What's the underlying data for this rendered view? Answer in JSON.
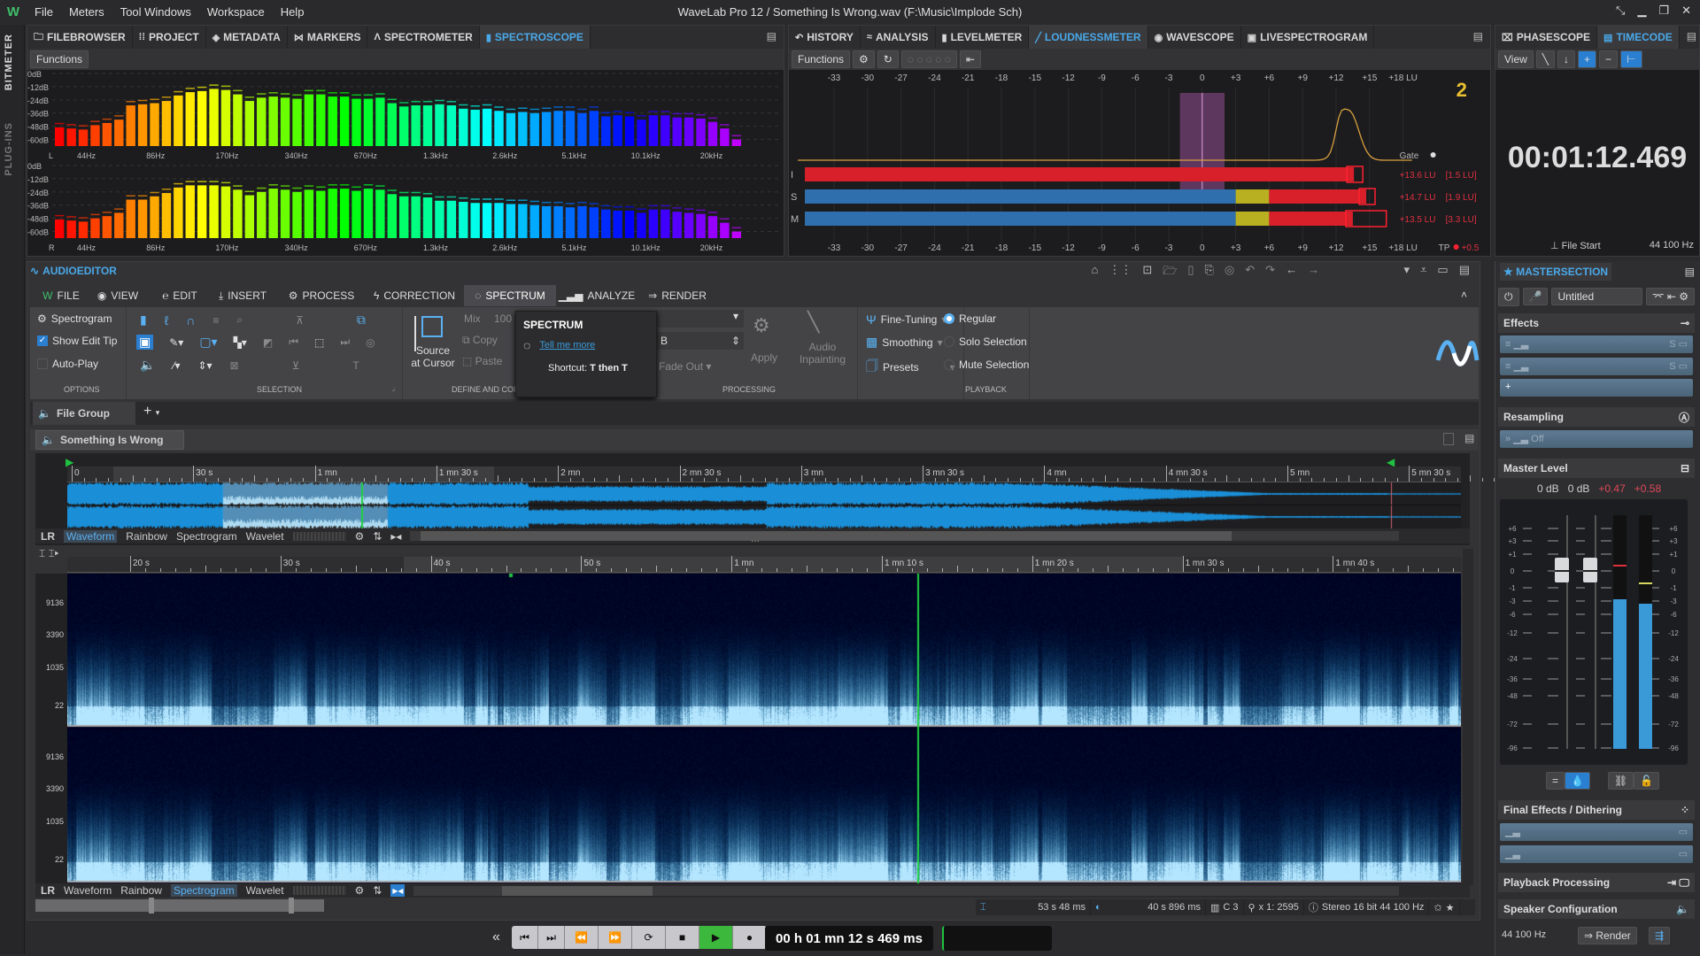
{
  "app": {
    "title": "WaveLab Pro 12 / Something Is Wrong.wav (F:\\Music\\Implode Sch)",
    "logo_icon": "wavelab-logo-icon"
  },
  "menu": [
    "File",
    "Meters",
    "Tool Windows",
    "Workspace",
    "Help"
  ],
  "side_strip": [
    "BITMETER",
    "PLUG-INS"
  ],
  "top_left": {
    "tabs": [
      {
        "label": "FILEBROWSER",
        "icon": "folder-icon"
      },
      {
        "label": "PROJECT",
        "icon": "grid-icon"
      },
      {
        "label": "METADATA",
        "icon": "tag-icon"
      },
      {
        "label": "MARKERS",
        "icon": "marker-icon"
      },
      {
        "label": "SPECTROMETER",
        "icon": "spectrometer-icon"
      },
      {
        "label": "SPECTROSCOPE",
        "icon": "bars-icon",
        "active": true
      }
    ],
    "functions": "Functions"
  },
  "spectroscope": {
    "db_ticks": [
      "0dB",
      "-12dB",
      "-24dB",
      "-36dB",
      "-48dB",
      "-60dB"
    ],
    "freq_ticks": [
      "44Hz",
      "86Hz",
      "170Hz",
      "340Hz",
      "670Hz",
      "1.3kHz",
      "2.6kHz",
      "5.1kHz",
      "10.1kHz",
      "20kHz"
    ],
    "channels": [
      "L",
      "R"
    ],
    "range_db": [
      -66,
      0
    ],
    "left_levels_db": [
      -49,
      -50,
      -51,
      -47,
      -45,
      -42,
      -29,
      -28,
      -27,
      -25,
      -20,
      -17,
      -16,
      -14,
      -15,
      -19,
      -25,
      -22,
      -21,
      -22,
      -23,
      -19,
      -19,
      -21,
      -21,
      -23,
      -23,
      -22,
      -27,
      -30,
      -29,
      -29,
      -28,
      -29,
      -32,
      -33,
      -32,
      -34,
      -36,
      -35,
      -36,
      -35,
      -34,
      -34,
      -36,
      -34,
      -39,
      -38,
      -39,
      -42,
      -38,
      -38,
      -40,
      -40,
      -41,
      -44,
      -50,
      -60
    ],
    "right_levels_db": [
      -49,
      -50,
      -51,
      -48,
      -46,
      -43,
      -31,
      -31,
      -28,
      -25,
      -20,
      -18,
      -18,
      -18,
      -19,
      -22,
      -27,
      -24,
      -21,
      -22,
      -24,
      -22,
      -23,
      -21,
      -21,
      -23,
      -21,
      -22,
      -26,
      -28,
      -28,
      -29,
      -32,
      -32,
      -33,
      -34,
      -34,
      -34,
      -35,
      -35,
      -36,
      -37,
      -37,
      -38,
      -37,
      -38,
      -40,
      -41,
      -41,
      -43,
      -40,
      -40,
      -42,
      -43,
      -44,
      -46,
      -52,
      -60
    ]
  },
  "top_mid": {
    "tabs": [
      {
        "label": "HISTORY",
        "icon": "undo-icon"
      },
      {
        "label": "ANALYSIS",
        "icon": "analysis-icon"
      },
      {
        "label": "LEVELMETER",
        "icon": "levelmeter-icon"
      },
      {
        "label": "LOUDNESSMETER",
        "icon": "loudness-icon",
        "active": true
      },
      {
        "label": "WAVESCOPE",
        "icon": "wavescope-icon"
      },
      {
        "label": "LIVESPECTROGRAM",
        "icon": "livespectrogram-icon"
      }
    ],
    "functions": "Functions"
  },
  "loudness": {
    "scale": [
      "-33",
      "-30",
      "-27",
      "-24",
      "-21",
      "-18",
      "-15",
      "-12",
      "-9",
      "-6",
      "-3",
      "0",
      "+3",
      "+6",
      "+9",
      "+12",
      "+15",
      "+18 LU"
    ],
    "range_lu": [
      -33,
      18
    ],
    "gate_label": "Gate",
    "tp_label": "TP",
    "tp_value": "+0.5",
    "rows": [
      {
        "label": "I",
        "value_lu": 13.6,
        "text": "+13.6 LU",
        "range": "[1.5 LU]"
      },
      {
        "label": "S",
        "value_lu": 14.7,
        "text": "+14.7 LU",
        "range": "[1.9 LU]"
      },
      {
        "label": "M",
        "value_lu": 13.5,
        "text": "+13.5 LU",
        "range": "[3.3 LU]"
      }
    ],
    "colors": {
      "integrated": "#d8202a",
      "short": "#2f6fae",
      "warn": "#b8b020",
      "over": "#d8202a",
      "histogram": "#d8a040"
    }
  },
  "top_right": {
    "tabs": [
      {
        "label": "PHASESCOPE",
        "icon": "phasescope-icon"
      },
      {
        "label": "TIMECODE",
        "icon": "timecode-icon",
        "active": true
      }
    ],
    "view": "View",
    "timecode": "00:01:12.469",
    "origin": "File Start",
    "rate": "44 100 Hz"
  },
  "editor": {
    "title": "AUDIOEDITOR",
    "ribbon_tabs": [
      {
        "label": "FILE",
        "icon": "wavelab-file-icon"
      },
      {
        "label": "VIEW",
        "icon": "eye-icon"
      },
      {
        "label": "EDIT",
        "icon": "edit-icon"
      },
      {
        "label": "INSERT",
        "icon": "insert-icon"
      },
      {
        "label": "PROCESS",
        "icon": "gears-icon"
      },
      {
        "label": "CORRECTION",
        "icon": "lightning-icon"
      },
      {
        "label": "SPECTRUM",
        "icon": "spectrum-icon",
        "active": true
      },
      {
        "label": "ANALYZE",
        "icon": "analyze-icon"
      },
      {
        "label": "RENDER",
        "icon": "render-icon"
      }
    ],
    "options": {
      "spectrogram": "Spectrogram",
      "show_edit_tip": "Show Edit Tip",
      "show_edit_tip_checked": true,
      "auto_play": "Auto-Play",
      "auto_play_checked": false,
      "label": "OPTIONS"
    },
    "selection_label": "SELECTION",
    "define": {
      "source_at_cursor": "Source at Cursor",
      "mix": "Mix",
      "mix_value": "100",
      "copy": "Copy",
      "paste": "Paste",
      "label": "DEFINE AND COPY"
    },
    "processing": {
      "unit": "B",
      "fade_out": "Fade Out",
      "apply": "Apply",
      "audio_inpainting": "Audio Inpainting",
      "fine_tuning": "Fine-Tuning",
      "smoothing": "Smoothing",
      "presets": "Presets",
      "label": "PROCESSING"
    },
    "playback": {
      "regular": "Regular",
      "solo": "Solo Selection",
      "mute": "Mute Selection",
      "selected": "Regular",
      "label": "PLAYBACK"
    },
    "tooltip": {
      "title": "SPECTRUM",
      "link": "Tell me more",
      "shortcut_label": "Shortcut:",
      "shortcut": "T then T"
    },
    "file_group": "File Group",
    "file_tab": "Something Is Wrong",
    "overview_ruler": [
      "0",
      "30 s",
      "1 mn",
      "1 mn 30 s",
      "2 mn",
      "2 mn 30 s",
      "3 mn",
      "3 mn 30 s",
      "4 mn",
      "4 mn 30 s",
      "5 mn",
      "5 mn 30 s"
    ],
    "main_ruler": [
      "20 s",
      "30 s",
      "40 s",
      "50 s",
      "1 mn",
      "1 mn 10 s",
      "1 mn 20 s",
      "1 mn 30 s",
      "1 mn 40 s"
    ],
    "freq_labels": [
      "9136",
      "3390",
      "1035",
      "22"
    ],
    "channels_label": "LR",
    "view_modes": [
      "Waveform",
      "Rainbow",
      "Spectrogram",
      "Wavelet"
    ],
    "overview_mode": "Waveform",
    "main_mode": "Spectrogram",
    "waveform_color": "#1a8fd8",
    "cursor_color": "#20d040",
    "status": {
      "selection_length": "53 s 48 ms",
      "cursor_pos": "40 s 896 ms",
      "channels": "C 3",
      "zoom": "x 1: 2595",
      "format": "Stereo 16 bit 44 100 Hz"
    }
  },
  "transport": {
    "time": "00 h 01 mn 12 s 469 ms",
    "buttons": [
      "go-start",
      "go-end",
      "rewind",
      "fast-forward",
      "loop",
      "stop",
      "play",
      "record"
    ]
  },
  "master": {
    "title": "MASTERSECTION",
    "preset": "Untitled",
    "effects": "Effects",
    "resampling": "Resampling",
    "resampling_value": "Off",
    "master_level": "Master Level",
    "gains": [
      "0 dB",
      "0 dB"
    ],
    "peaks": [
      "+0.47",
      "+0.58"
    ],
    "meter_scale": [
      "+6",
      "+3",
      "+1",
      "0",
      "-1",
      "-3",
      "-6",
      "-12",
      "-24",
      "-36",
      "-48",
      "-72",
      "-96"
    ],
    "meter_levels_db": [
      -2.6,
      -3.2
    ],
    "final_effects": "Final Effects / Dithering",
    "playback_processing": "Playback Processing",
    "speaker_config": "Speaker Configuration",
    "rate": "44 100 Hz",
    "render": "Render"
  }
}
